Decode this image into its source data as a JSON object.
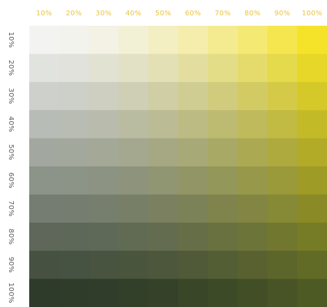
{
  "chart_data": {
    "type": "heatmap",
    "title": "",
    "x_label": "",
    "y_label": "",
    "x_categories": [
      "10%",
      "20%",
      "30%",
      "40%",
      "50%",
      "60%",
      "70%",
      "80%",
      "90%",
      "100%"
    ],
    "y_categories": [
      "10%",
      "20%",
      "30%",
      "40%",
      "50%",
      "60%",
      "70%",
      "80%",
      "90%",
      "100%"
    ],
    "x_values": [
      0.1,
      0.2,
      0.3,
      0.4,
      0.5,
      0.6,
      0.7,
      0.8,
      0.9,
      1.0
    ],
    "y_values": [
      0.1,
      0.2,
      0.3,
      0.4,
      0.5,
      0.6,
      0.7,
      0.8,
      0.9,
      1.0
    ],
    "colors": {
      "x_tick_color": "#e8c440",
      "y_tick_color": "#5a5a5a",
      "light_anchor": "#f3f3f1",
      "yellow_anchor": "#f5e32a",
      "dark_anchor": "#2e3b2a",
      "dark_yellow_anchor": "#4e5a24"
    },
    "grid": false,
    "legend": "none"
  }
}
